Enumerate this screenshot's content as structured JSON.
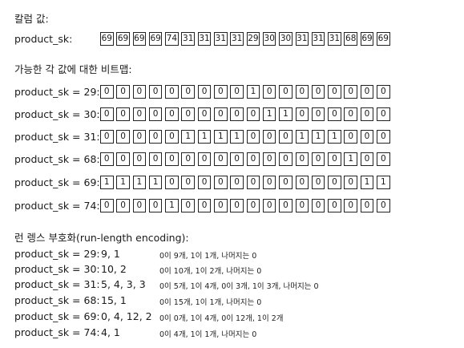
{
  "section_column": {
    "heading": "칼럼 값:",
    "label": "product_sk:",
    "values": [
      "69",
      "69",
      "69",
      "69",
      "74",
      "31",
      "31",
      "31",
      "31",
      "29",
      "30",
      "30",
      "31",
      "31",
      "31",
      "68",
      "69",
      "69"
    ]
  },
  "section_bitmaps": {
    "heading": "가능한 각 값에 대한 비트맵:",
    "rows": [
      {
        "label": "product_sk = 29:",
        "bits": [
          "0",
          "0",
          "0",
          "0",
          "0",
          "0",
          "0",
          "0",
          "0",
          "1",
          "0",
          "0",
          "0",
          "0",
          "0",
          "0",
          "0",
          "0"
        ]
      },
      {
        "label": "product_sk = 30:",
        "bits": [
          "0",
          "0",
          "0",
          "0",
          "0",
          "0",
          "0",
          "0",
          "0",
          "0",
          "1",
          "1",
          "0",
          "0",
          "0",
          "0",
          "0",
          "0"
        ]
      },
      {
        "label": "product_sk = 31:",
        "bits": [
          "0",
          "0",
          "0",
          "0",
          "0",
          "1",
          "1",
          "1",
          "1",
          "0",
          "0",
          "0",
          "1",
          "1",
          "1",
          "0",
          "0",
          "0"
        ]
      },
      {
        "label": "product_sk = 68:",
        "bits": [
          "0",
          "0",
          "0",
          "0",
          "0",
          "0",
          "0",
          "0",
          "0",
          "0",
          "0",
          "0",
          "0",
          "0",
          "0",
          "1",
          "0",
          "0"
        ]
      },
      {
        "label": "product_sk = 69:",
        "bits": [
          "1",
          "1",
          "1",
          "1",
          "0",
          "0",
          "0",
          "0",
          "0",
          "0",
          "0",
          "0",
          "0",
          "0",
          "0",
          "0",
          "1",
          "1"
        ]
      },
      {
        "label": "product_sk = 74:",
        "bits": [
          "0",
          "0",
          "0",
          "0",
          "1",
          "0",
          "0",
          "0",
          "0",
          "0",
          "0",
          "0",
          "0",
          "0",
          "0",
          "0",
          "0",
          "0"
        ]
      }
    ]
  },
  "section_rle": {
    "heading": "런 렝스 부호화(run-length encoding):",
    "rows": [
      {
        "label": "product_sk = 29:",
        "value": "9, 1",
        "desc": "0이 9개, 1이 1개, 나머지는 0"
      },
      {
        "label": "product_sk = 30:",
        "value": "10, 2",
        "desc": "0이 10개, 1이 2개, 나머지는 0"
      },
      {
        "label": "product_sk = 31:",
        "value": "5, 4, 3, 3",
        "desc": "0이 5개, 1이 4개, 0이 3개, 1이 3개, 나머지는 0"
      },
      {
        "label": "product_sk = 68:",
        "value": "15, 1",
        "desc": "0이 15개, 1이 1개, 나머지는 0"
      },
      {
        "label": "product_sk = 69:",
        "value": "0, 4, 12, 2",
        "desc": "0이 0개, 1이 4개, 0이 12개, 1이 2개"
      },
      {
        "label": "product_sk = 74:",
        "value": "4, 1",
        "desc": "0이 4개, 1이 1개, 나머지는 0"
      }
    ]
  }
}
